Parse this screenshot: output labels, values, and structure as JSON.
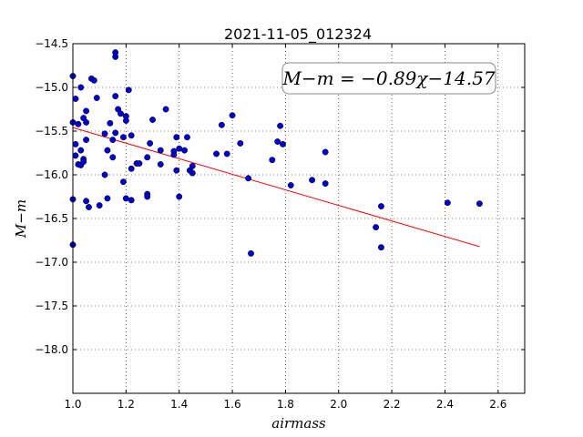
{
  "chart_data": {
    "type": "scatter",
    "title": "2021-11-05_012324",
    "xlabel": "airmass",
    "ylabel": "M−m",
    "xlim": [
      1.0,
      2.7
    ],
    "ylim": [
      -14.5,
      -18.5
    ],
    "y_inverted": true,
    "grid": true,
    "x_ticks": [
      "1.0",
      "1.2",
      "1.4",
      "1.6",
      "1.8",
      "2.0",
      "2.2",
      "2.4",
      "2.6"
    ],
    "y_ticks": [
      "−14.5",
      "−15.0",
      "−15.5",
      "−16.0",
      "−16.5",
      "−17.0",
      "−17.5",
      "−18.0"
    ],
    "annotation": "M−m = −0.89χ−14.57",
    "annotation_placement": "top-right",
    "fit_line": {
      "slope": -0.89,
      "intercept": -14.57,
      "x_range": [
        1.0,
        2.53
      ],
      "color": "#ff0000"
    },
    "point_color": "#0000cc",
    "points": [
      [
        1.0,
        -14.87
      ],
      [
        1.0,
        -15.4
      ],
      [
        1.0,
        -16.28
      ],
      [
        1.0,
        -16.8
      ],
      [
        1.01,
        -15.13
      ],
      [
        1.01,
        -15.65
      ],
      [
        1.01,
        -15.78
      ],
      [
        1.02,
        -15.42
      ],
      [
        1.02,
        -15.88
      ],
      [
        1.03,
        -15.89
      ],
      [
        1.03,
        -15.72
      ],
      [
        1.03,
        -15.0
      ],
      [
        1.04,
        -15.35
      ],
      [
        1.04,
        -15.82
      ],
      [
        1.04,
        -15.85
      ],
      [
        1.05,
        -15.27
      ],
      [
        1.05,
        -15.6
      ],
      [
        1.05,
        -15.4
      ],
      [
        1.05,
        -16.3
      ],
      [
        1.06,
        -16.37
      ],
      [
        1.07,
        -14.9
      ],
      [
        1.08,
        -14.92
      ],
      [
        1.09,
        -15.12
      ],
      [
        1.1,
        -16.35
      ],
      [
        1.12,
        -16.0
      ],
      [
        1.12,
        -15.53
      ],
      [
        1.13,
        -15.72
      ],
      [
        1.13,
        -16.27
      ],
      [
        1.14,
        -15.41
      ],
      [
        1.15,
        -15.8
      ],
      [
        1.15,
        -15.6
      ],
      [
        1.16,
        -15.1
      ],
      [
        1.16,
        -15.52
      ],
      [
        1.16,
        -14.6
      ],
      [
        1.16,
        -14.65
      ],
      [
        1.17,
        -15.25
      ],
      [
        1.18,
        -15.3
      ],
      [
        1.19,
        -15.57
      ],
      [
        1.19,
        -16.08
      ],
      [
        1.2,
        -15.33
      ],
      [
        1.2,
        -15.38
      ],
      [
        1.2,
        -16.27
      ],
      [
        1.21,
        -15.03
      ],
      [
        1.22,
        -15.55
      ],
      [
        1.22,
        -15.93
      ],
      [
        1.22,
        -16.29
      ],
      [
        1.24,
        -15.87
      ],
      [
        1.25,
        -15.87
      ],
      [
        1.28,
        -15.8
      ],
      [
        1.28,
        -16.22
      ],
      [
        1.28,
        -16.25
      ],
      [
        1.29,
        -15.64
      ],
      [
        1.3,
        -15.37
      ],
      [
        1.33,
        -15.88
      ],
      [
        1.33,
        -15.72
      ],
      [
        1.35,
        -15.25
      ],
      [
        1.38,
        -15.73
      ],
      [
        1.38,
        -15.77
      ],
      [
        1.39,
        -15.57
      ],
      [
        1.39,
        -15.95
      ],
      [
        1.4,
        -16.25
      ],
      [
        1.4,
        -15.7
      ],
      [
        1.42,
        -15.72
      ],
      [
        1.43,
        -15.57
      ],
      [
        1.44,
        -15.95
      ],
      [
        1.45,
        -15.9
      ],
      [
        1.45,
        -15.98
      ],
      [
        1.54,
        -15.76
      ],
      [
        1.56,
        -15.43
      ],
      [
        1.58,
        -15.76
      ],
      [
        1.6,
        -15.32
      ],
      [
        1.63,
        -15.64
      ],
      [
        1.66,
        -16.04
      ],
      [
        1.67,
        -16.9
      ],
      [
        1.75,
        -15.83
      ],
      [
        1.77,
        -15.62
      ],
      [
        1.78,
        -15.44
      ],
      [
        1.79,
        -15.65
      ],
      [
        1.82,
        -16.12
      ],
      [
        1.9,
        -16.06
      ],
      [
        1.95,
        -15.74
      ],
      [
        1.95,
        -16.1
      ],
      [
        2.14,
        -16.6
      ],
      [
        2.16,
        -16.36
      ],
      [
        2.16,
        -16.83
      ],
      [
        2.41,
        -16.32
      ],
      [
        2.53,
        -16.33
      ]
    ]
  }
}
